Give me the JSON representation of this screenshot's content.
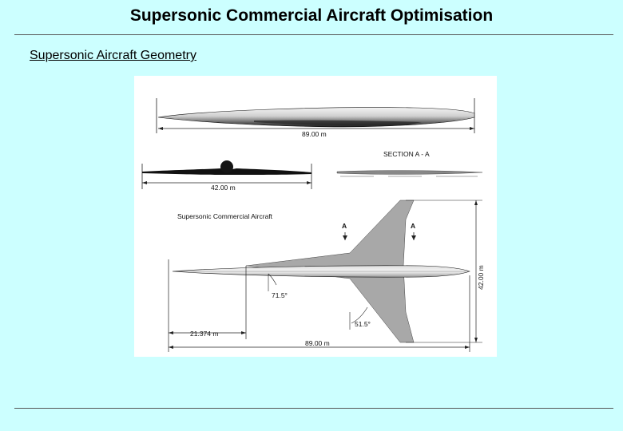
{
  "slide": {
    "title": "Supersonic Commercial Aircraft Optimisation",
    "subtitle": "Supersonic Aircraft Geometry"
  },
  "figure": {
    "side_view_length": "89.00 m",
    "front_view_span": "42.00 m",
    "section_label": "SECTION A - A",
    "plan_caption": "Supersonic Commercial Aircraft",
    "section_mark_left": "A",
    "section_mark_right": "A",
    "span_vertical": "42.00 m",
    "sweep_inner": "71.5°",
    "sweep_outer": "51.5°",
    "wing_apex_station": "21.374 m",
    "plan_length": "89.00 m"
  },
  "colors": {
    "background": "#ccffff",
    "wing_fill": "#a8a8a8",
    "rule": "#555555"
  }
}
